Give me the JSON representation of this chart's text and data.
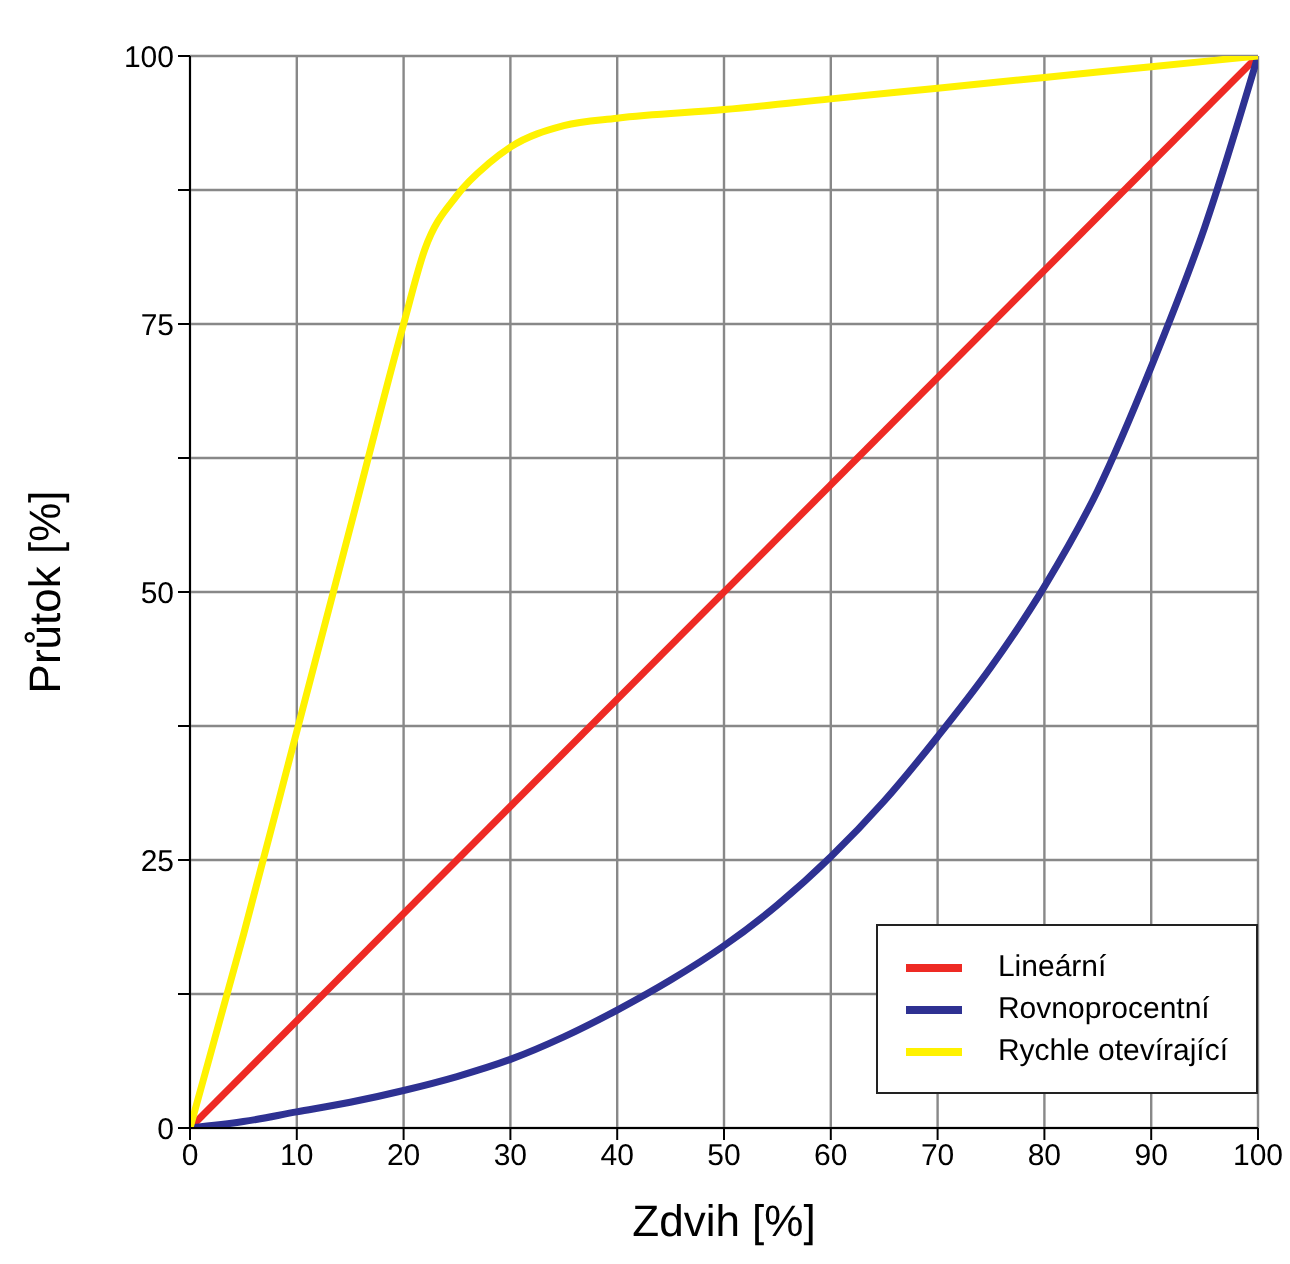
{
  "chart_data": {
    "type": "line",
    "xlabel": "Zdvih [%]",
    "ylabel": "Průtok [%]",
    "xlim": [
      0,
      100
    ],
    "xticks": [
      0,
      10,
      20,
      30,
      40,
      50,
      60,
      70,
      80,
      90,
      100
    ],
    "ylim": [
      0,
      100
    ],
    "yticks": [
      0,
      {
        "value": 12.5,
        "label": null
      },
      25,
      {
        "value": 37.5,
        "label": null
      },
      50,
      {
        "value": 62.5,
        "label": null
      },
      75,
      {
        "value": 87.5,
        "label": null
      },
      100
    ],
    "grid": true,
    "legend": "bottom right",
    "marker": "none",
    "line_style": "solid",
    "series": [
      {
        "name": "Lineární",
        "color": "#ee2a24",
        "x": [
          0,
          100
        ],
        "values": [
          0,
          100
        ]
      },
      {
        "name": "Rovnoprocentní",
        "color": "#2e3192",
        "x": [
          0,
          5,
          10,
          15,
          20,
          25,
          30,
          35,
          40,
          45,
          50,
          55,
          60,
          65,
          70,
          75,
          80,
          85,
          90,
          95,
          100
        ],
        "values": [
          0,
          0.6,
          1.5,
          2.4,
          3.5,
          4.8,
          6.4,
          8.5,
          11,
          13.8,
          17,
          20.8,
          25.3,
          30.5,
          36.5,
          43,
          50.5,
          59.5,
          71,
          84,
          100
        ]
      },
      {
        "name": "Rychle otevírající",
        "color": "#fff200",
        "x": [
          0,
          5,
          10,
          15,
          20,
          22,
          25,
          28,
          30,
          35,
          40,
          50,
          60,
          70,
          80,
          90,
          100
        ],
        "values": [
          0,
          18,
          37,
          56,
          75,
          82,
          87,
          90,
          91.5,
          93.5,
          94.2,
          95,
          96,
          97,
          98,
          99,
          100
        ]
      }
    ]
  }
}
